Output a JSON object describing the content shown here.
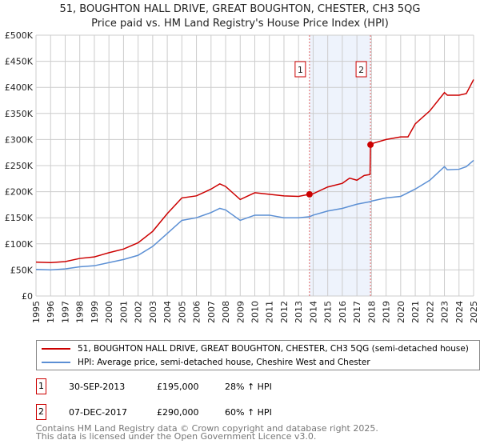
{
  "title": "51, BOUGHTON HALL DRIVE, GREAT BOUGHTON, CHESTER, CH3 5QG",
  "subtitle": "Price paid vs. HM Land Registry's House Price Index (HPI)",
  "chart_data": {
    "type": "line",
    "title": "51, BOUGHTON HALL DRIVE, GREAT BOUGHTON, CHESTER, CH3 5QG",
    "subtitle": "Price paid vs. HM Land Registry's House Price Index (HPI)",
    "xlim": [
      1995,
      2025
    ],
    "ylim": [
      0,
      500000
    ],
    "xticks": [
      "1995",
      "1996",
      "1997",
      "1998",
      "1999",
      "2000",
      "2001",
      "2002",
      "2003",
      "2004",
      "2005",
      "2006",
      "2007",
      "2008",
      "2009",
      "2010",
      "2011",
      "2012",
      "2013",
      "2014",
      "2015",
      "2016",
      "2017",
      "2018",
      "2019",
      "2020",
      "2021",
      "2022",
      "2023",
      "2024",
      "2025"
    ],
    "yticks": [
      "£0",
      "£50K",
      "£100K",
      "£150K",
      "£200K",
      "£250K",
      "£300K",
      "£350K",
      "£400K",
      "£450K",
      "£500K"
    ],
    "grid": true,
    "series": [
      {
        "name": "51, BOUGHTON HALL DRIVE, GREAT BOUGHTON, CHESTER, CH3 5QG (semi-detached house)",
        "color": "#cc0000",
        "x": [
          1995,
          1996,
          1997,
          1998,
          1999,
          2000,
          2001,
          2002,
          2003,
          2004,
          2005,
          2006,
          2007,
          2007.6,
          2008,
          2009,
          2010,
          2011,
          2012,
          2013,
          2013.75,
          2014,
          2015,
          2016,
          2016.5,
          2017,
          2017.5,
          2017.9,
          2017.93,
          2018,
          2019,
          2020,
          2020.5,
          2021,
          2022,
          2023,
          2023.2,
          2024,
          2024.5,
          2025
        ],
        "y": [
          65000,
          64000,
          66000,
          72000,
          75000,
          83000,
          90000,
          102000,
          124000,
          158000,
          188000,
          192000,
          205000,
          215000,
          210000,
          185000,
          198000,
          195000,
          192000,
          191000,
          195000,
          196000,
          209000,
          216000,
          226000,
          222000,
          231000,
          233000,
          290000,
          292000,
          300000,
          305000,
          305000,
          330000,
          355000,
          390000,
          385000,
          385000,
          388000,
          415000
        ]
      },
      {
        "name": "HPI: Average price, semi-detached house, Cheshire West and Chester",
        "color": "#5b8fd4",
        "x": [
          1995,
          1996,
          1997,
          1998,
          1999,
          2000,
          2001,
          2002,
          2003,
          2004,
          2005,
          2006,
          2007,
          2007.6,
          2008,
          2009,
          2010,
          2011,
          2012,
          2013,
          2013.75,
          2014,
          2015,
          2016,
          2017,
          2017.93,
          2018,
          2019,
          2020,
          2021,
          2022,
          2023,
          2023.2,
          2024,
          2024.5,
          2025
        ],
        "y": [
          51000,
          50000,
          52000,
          56000,
          58000,
          64000,
          70000,
          78000,
          95000,
          120000,
          145000,
          150000,
          160000,
          168000,
          165000,
          145000,
          155000,
          155000,
          150000,
          150000,
          152000,
          155000,
          163000,
          168000,
          176000,
          181000,
          182000,
          188000,
          191000,
          205000,
          222000,
          248000,
          242000,
          243000,
          248000,
          260000
        ]
      }
    ],
    "annotations": [
      {
        "label": "1",
        "x": 2013.75,
        "y": 195000
      },
      {
        "label": "2",
        "x": 2017.93,
        "y": 290000
      }
    ],
    "shaded_range": [
      2013.75,
      2017.93
    ],
    "legend_position": "bottom"
  },
  "legend": {
    "items": [
      {
        "label": "51, BOUGHTON HALL DRIVE, GREAT BOUGHTON, CHESTER, CH3 5QG (semi-detached house)",
        "color": "#cc0000"
      },
      {
        "label": "HPI: Average price, semi-detached house, Cheshire West and Chester",
        "color": "#5b8fd4"
      }
    ]
  },
  "transactions": [
    {
      "num": "1",
      "date": "30-SEP-2013",
      "price": "£195,000",
      "hpi": "28% ↑ HPI"
    },
    {
      "num": "2",
      "date": "07-DEC-2017",
      "price": "£290,000",
      "hpi": "60% ↑ HPI"
    }
  ],
  "footer": {
    "line1": "Contains HM Land Registry data © Crown copyright and database right 2025.",
    "line2": "This data is licensed under the Open Government Licence v3.0."
  }
}
